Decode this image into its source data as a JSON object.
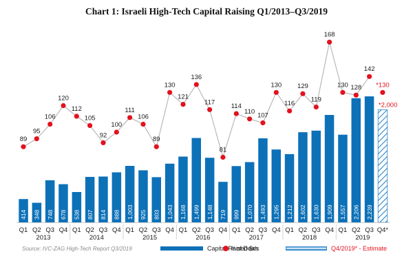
{
  "title": "Chart 1: Israeli High-Tech Capital Raising Q1/2013–Q3/2019",
  "source": "Source: IVC-ZAG High-Tech Report Q3/2019",
  "legend": {
    "capital": "Capital Raised $m",
    "deals": "# of Deals",
    "estimate": "Q4/2019* - Estimate"
  },
  "colors": {
    "bar": "#0d71b8",
    "deals": "#e3121f",
    "line": "#b8b8b8",
    "estimate": "#2e86cb"
  },
  "chart_data": {
    "type": "bar",
    "categories": [
      "Q1",
      "Q2",
      "Q3",
      "Q4",
      "Q1",
      "Q2",
      "Q3",
      "Q4",
      "Q1",
      "Q2",
      "Q3",
      "Q4",
      "Q1",
      "Q2",
      "Q3",
      "Q4",
      "Q1",
      "Q2",
      "Q3",
      "Q4",
      "Q1",
      "Q2",
      "Q3",
      "Q4",
      "Q1",
      "Q2",
      "Q3",
      "Q4*"
    ],
    "years": [
      {
        "label": "2013",
        "from": 0,
        "to": 3
      },
      {
        "label": "2014",
        "from": 4,
        "to": 7
      },
      {
        "label": "2015",
        "from": 8,
        "to": 11
      },
      {
        "label": "2016",
        "from": 12,
        "to": 15
      },
      {
        "label": "2017",
        "from": 16,
        "to": 19
      },
      {
        "label": "2018",
        "from": 20,
        "to": 23
      },
      {
        "label": "2019",
        "from": 24,
        "to": 27
      }
    ],
    "series": [
      {
        "name": "Capital Raised $m",
        "values": [
          414,
          348,
          748,
          678,
          538,
          807,
          814,
          888,
          1003,
          925,
          803,
          1043,
          1168,
          1499,
          1148,
          719,
          999,
          1070,
          1493,
          1295,
          1212,
          1602,
          1630,
          1909,
          1557,
          2206,
          2239,
          null
        ],
        "labels": [
          "414",
          "348",
          "748",
          "678",
          "538",
          "807",
          "814",
          "888",
          "1,003",
          "925",
          "803",
          "1,043",
          "1,168",
          "1,499",
          "1,148",
          "719",
          "999",
          "1,070",
          "1,493",
          "1,295",
          "1,212",
          "1,602",
          "1,630",
          "1,909",
          "1,557",
          "2,206",
          "2,239",
          ""
        ]
      },
      {
        "name": "# of Deals",
        "values": [
          89,
          95,
          106,
          120,
          112,
          105,
          92,
          100,
          111,
          106,
          89,
          130,
          121,
          136,
          117,
          81,
          114,
          110,
          107,
          130,
          116,
          129,
          119,
          168,
          130,
          128,
          142,
          null
        ]
      }
    ],
    "estimate": {
      "capital": 2000,
      "capital_label": "*2,000",
      "deals": 130,
      "deals_label": "*130"
    },
    "ylim_capital": [
      0,
      2750
    ],
    "ylim_deals": [
      40,
      175
    ]
  }
}
